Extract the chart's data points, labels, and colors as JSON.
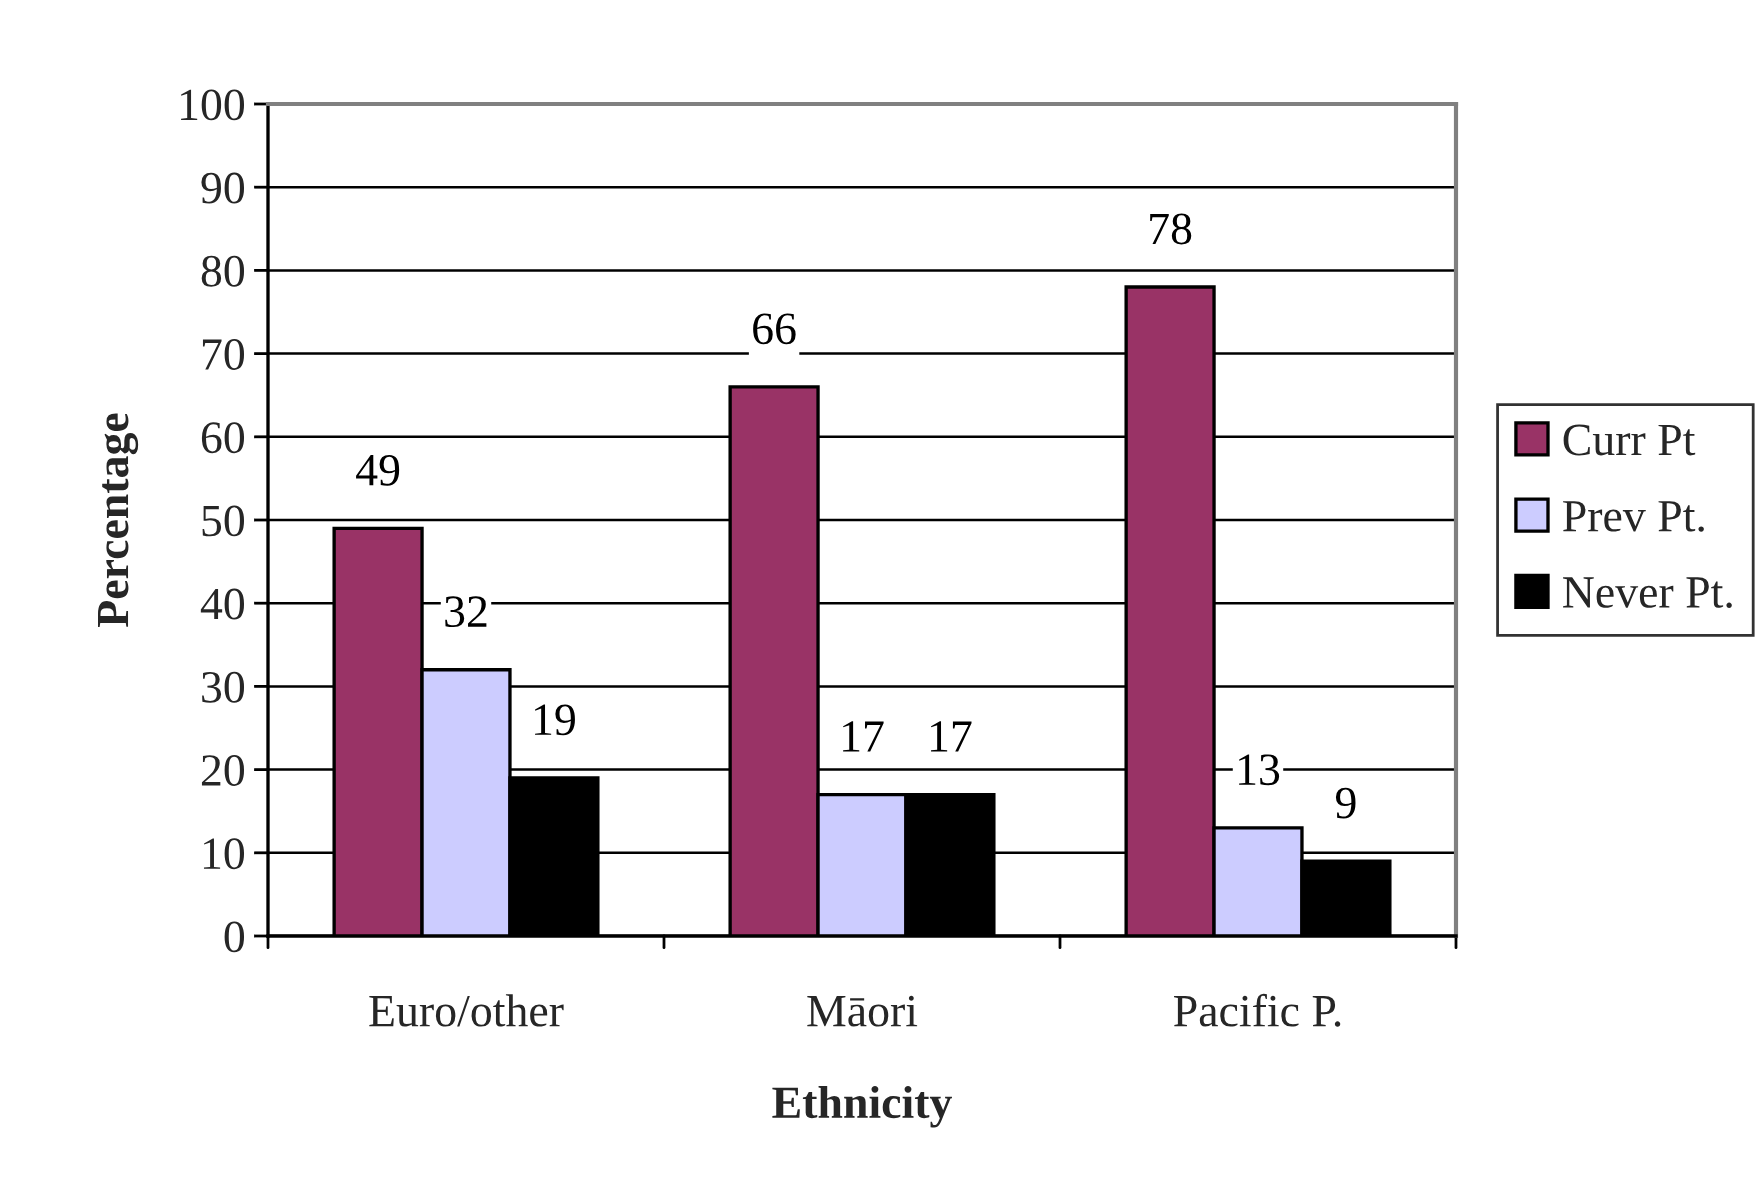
{
  "chart_data": {
    "type": "bar",
    "xlabel": "Ethnicity",
    "ylabel": "Percentage",
    "categories": [
      "Euro/other",
      "Māori",
      "Pacific P."
    ],
    "series": [
      {
        "name": "Curr Pt",
        "color": "#993366",
        "values": [
          49,
          66,
          78
        ]
      },
      {
        "name": "Prev Pt.",
        "color": "#ccccff",
        "values": [
          32,
          17,
          13
        ]
      },
      {
        "name": "Never Pt.",
        "color": "#000000",
        "values": [
          19,
          17,
          9
        ]
      }
    ],
    "ylim": [
      0,
      100
    ],
    "yticks": [
      0,
      10,
      20,
      30,
      40,
      50,
      60,
      70,
      80,
      90,
      100
    ],
    "grid": "y",
    "legend": "right",
    "data_labels": true
  }
}
